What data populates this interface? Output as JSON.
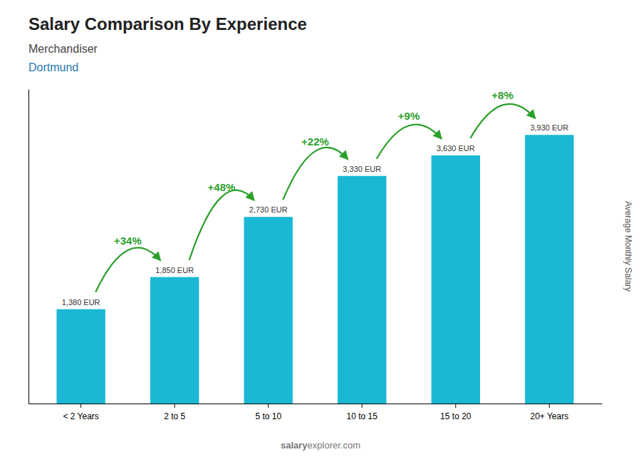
{
  "chart_data": {
    "type": "bar",
    "title": "Salary Comparison By Experience",
    "subtitle": [
      "Merchandiser",
      "Dortmund"
    ],
    "ylabel": "Average Monthly Salary",
    "categories": [
      "< 2 Years",
      "2 to 5",
      "5 to 10",
      "10 to 15",
      "15 to 20",
      "20+ Years"
    ],
    "values": [
      1380,
      1850,
      2730,
      3330,
      3630,
      3930
    ],
    "value_labels": [
      "1,380 EUR",
      "1,850 EUR",
      "2,730 EUR",
      "3,330 EUR",
      "3,630 EUR",
      "3,930 EUR"
    ],
    "data_labels": true,
    "color": "#1ab8d4",
    "ylim": [
      0,
      4600
    ],
    "tick_labels": "x",
    "grid": false,
    "annotations": [
      "+34%",
      "+48%",
      "+22%",
      "+9%",
      "+8%",
      "salary",
      "explorer.com"
    ]
  }
}
